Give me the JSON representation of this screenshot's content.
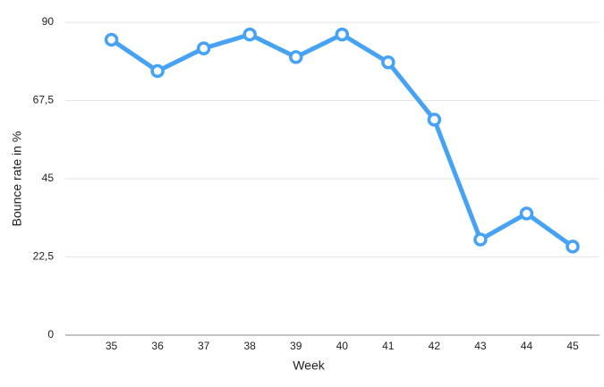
{
  "chart_data": {
    "type": "line",
    "x_label": "Week",
    "y_label": "Bounce rate in %",
    "x": [
      35,
      36,
      37,
      38,
      39,
      40,
      41,
      42,
      43,
      44,
      45
    ],
    "series": [
      {
        "name": "Bounce rate",
        "color": "#46a2f5",
        "values": [
          85,
          76,
          82.5,
          86.5,
          80,
          86.5,
          78.5,
          62,
          27.5,
          35,
          25.5
        ]
      }
    ],
    "xlim": [
      34,
      45
    ],
    "xticks": [
      35,
      36,
      37,
      38,
      39,
      40,
      41,
      42,
      43,
      44,
      45
    ],
    "ylim": [
      0,
      90
    ],
    "yticks": [
      0,
      {
        "value": 22.5,
        "label": "22,5"
      },
      45,
      {
        "value": 67.5,
        "label": "67,5"
      },
      90
    ],
    "grid": true
  }
}
